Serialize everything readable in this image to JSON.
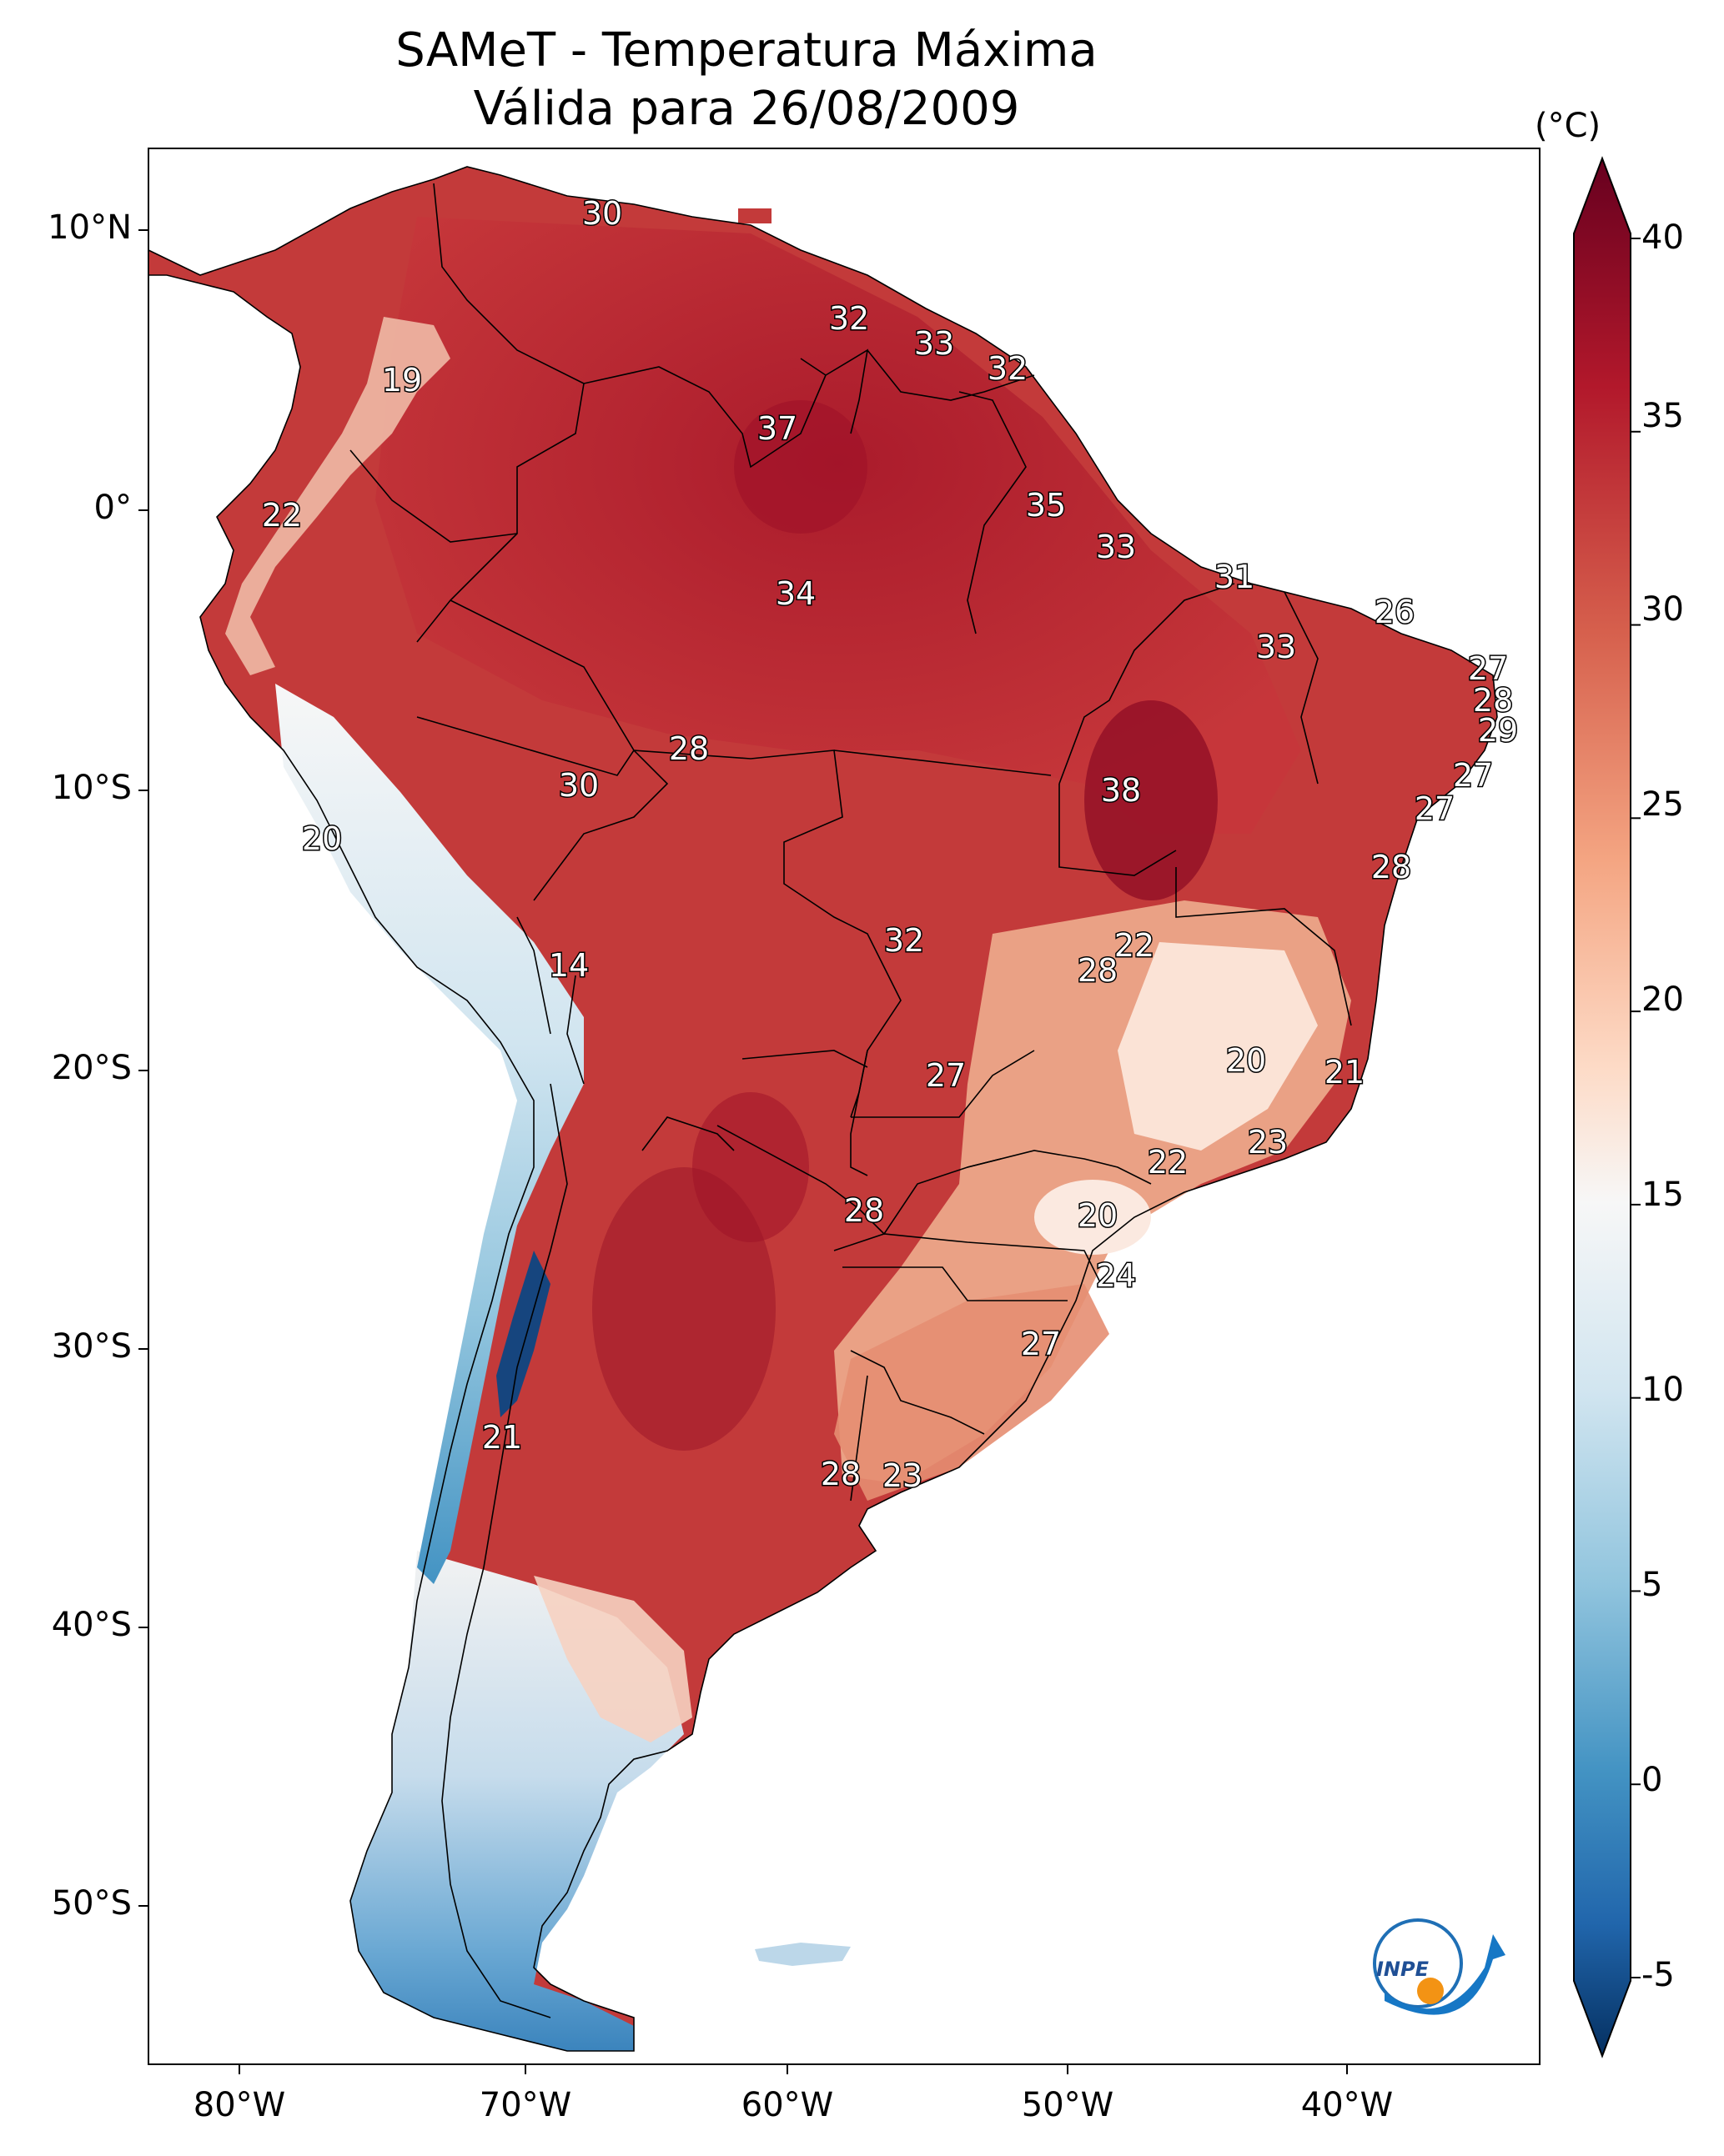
{
  "title": {
    "line1": "SAMeT - Temperatura Máxima",
    "line2": "Válida para 26/08/2009"
  },
  "axes": {
    "lat_labels": [
      "10°N",
      "0°",
      "10°S",
      "20°S",
      "30°S",
      "40°S",
      "50°S"
    ],
    "lon_labels": [
      "80°W",
      "70°W",
      "60°W",
      "50°W",
      "40°W"
    ]
  },
  "colorbar": {
    "unit": "(°C)",
    "tick_labels": [
      "40",
      "35",
      "30",
      "25",
      "20",
      "15",
      "10",
      "5",
      "0",
      "-5"
    ],
    "range": [
      -5,
      40
    ],
    "colors": [
      "#053061",
      "#2166ac",
      "#4393c3",
      "#92c5de",
      "#d1e5f0",
      "#f7f7f7",
      "#fddbc7",
      "#f4a582",
      "#d6604d",
      "#b2182b",
      "#67001f"
    ]
  },
  "map_labels": [
    {
      "text": "30"
    },
    {
      "text": "32"
    },
    {
      "text": "33"
    },
    {
      "text": "32"
    },
    {
      "text": "19"
    },
    {
      "text": "37"
    },
    {
      "text": "35"
    },
    {
      "text": "22"
    },
    {
      "text": "33"
    },
    {
      "text": "31"
    },
    {
      "text": "34"
    },
    {
      "text": "26"
    },
    {
      "text": "33"
    },
    {
      "text": "27"
    },
    {
      "text": "28"
    },
    {
      "text": "29"
    },
    {
      "text": "28"
    },
    {
      "text": "27"
    },
    {
      "text": "30"
    },
    {
      "text": "38"
    },
    {
      "text": "27"
    },
    {
      "text": "20"
    },
    {
      "text": "28"
    },
    {
      "text": "22"
    },
    {
      "text": "32"
    },
    {
      "text": "14"
    },
    {
      "text": "28"
    },
    {
      "text": "20"
    },
    {
      "text": "21"
    },
    {
      "text": "27"
    },
    {
      "text": "23"
    },
    {
      "text": "22"
    },
    {
      "text": "28"
    },
    {
      "text": "20"
    },
    {
      "text": "24"
    },
    {
      "text": "27"
    },
    {
      "text": "21"
    },
    {
      "text": "28"
    },
    {
      "text": "23"
    }
  ],
  "logo": {
    "text": "INPE"
  }
}
